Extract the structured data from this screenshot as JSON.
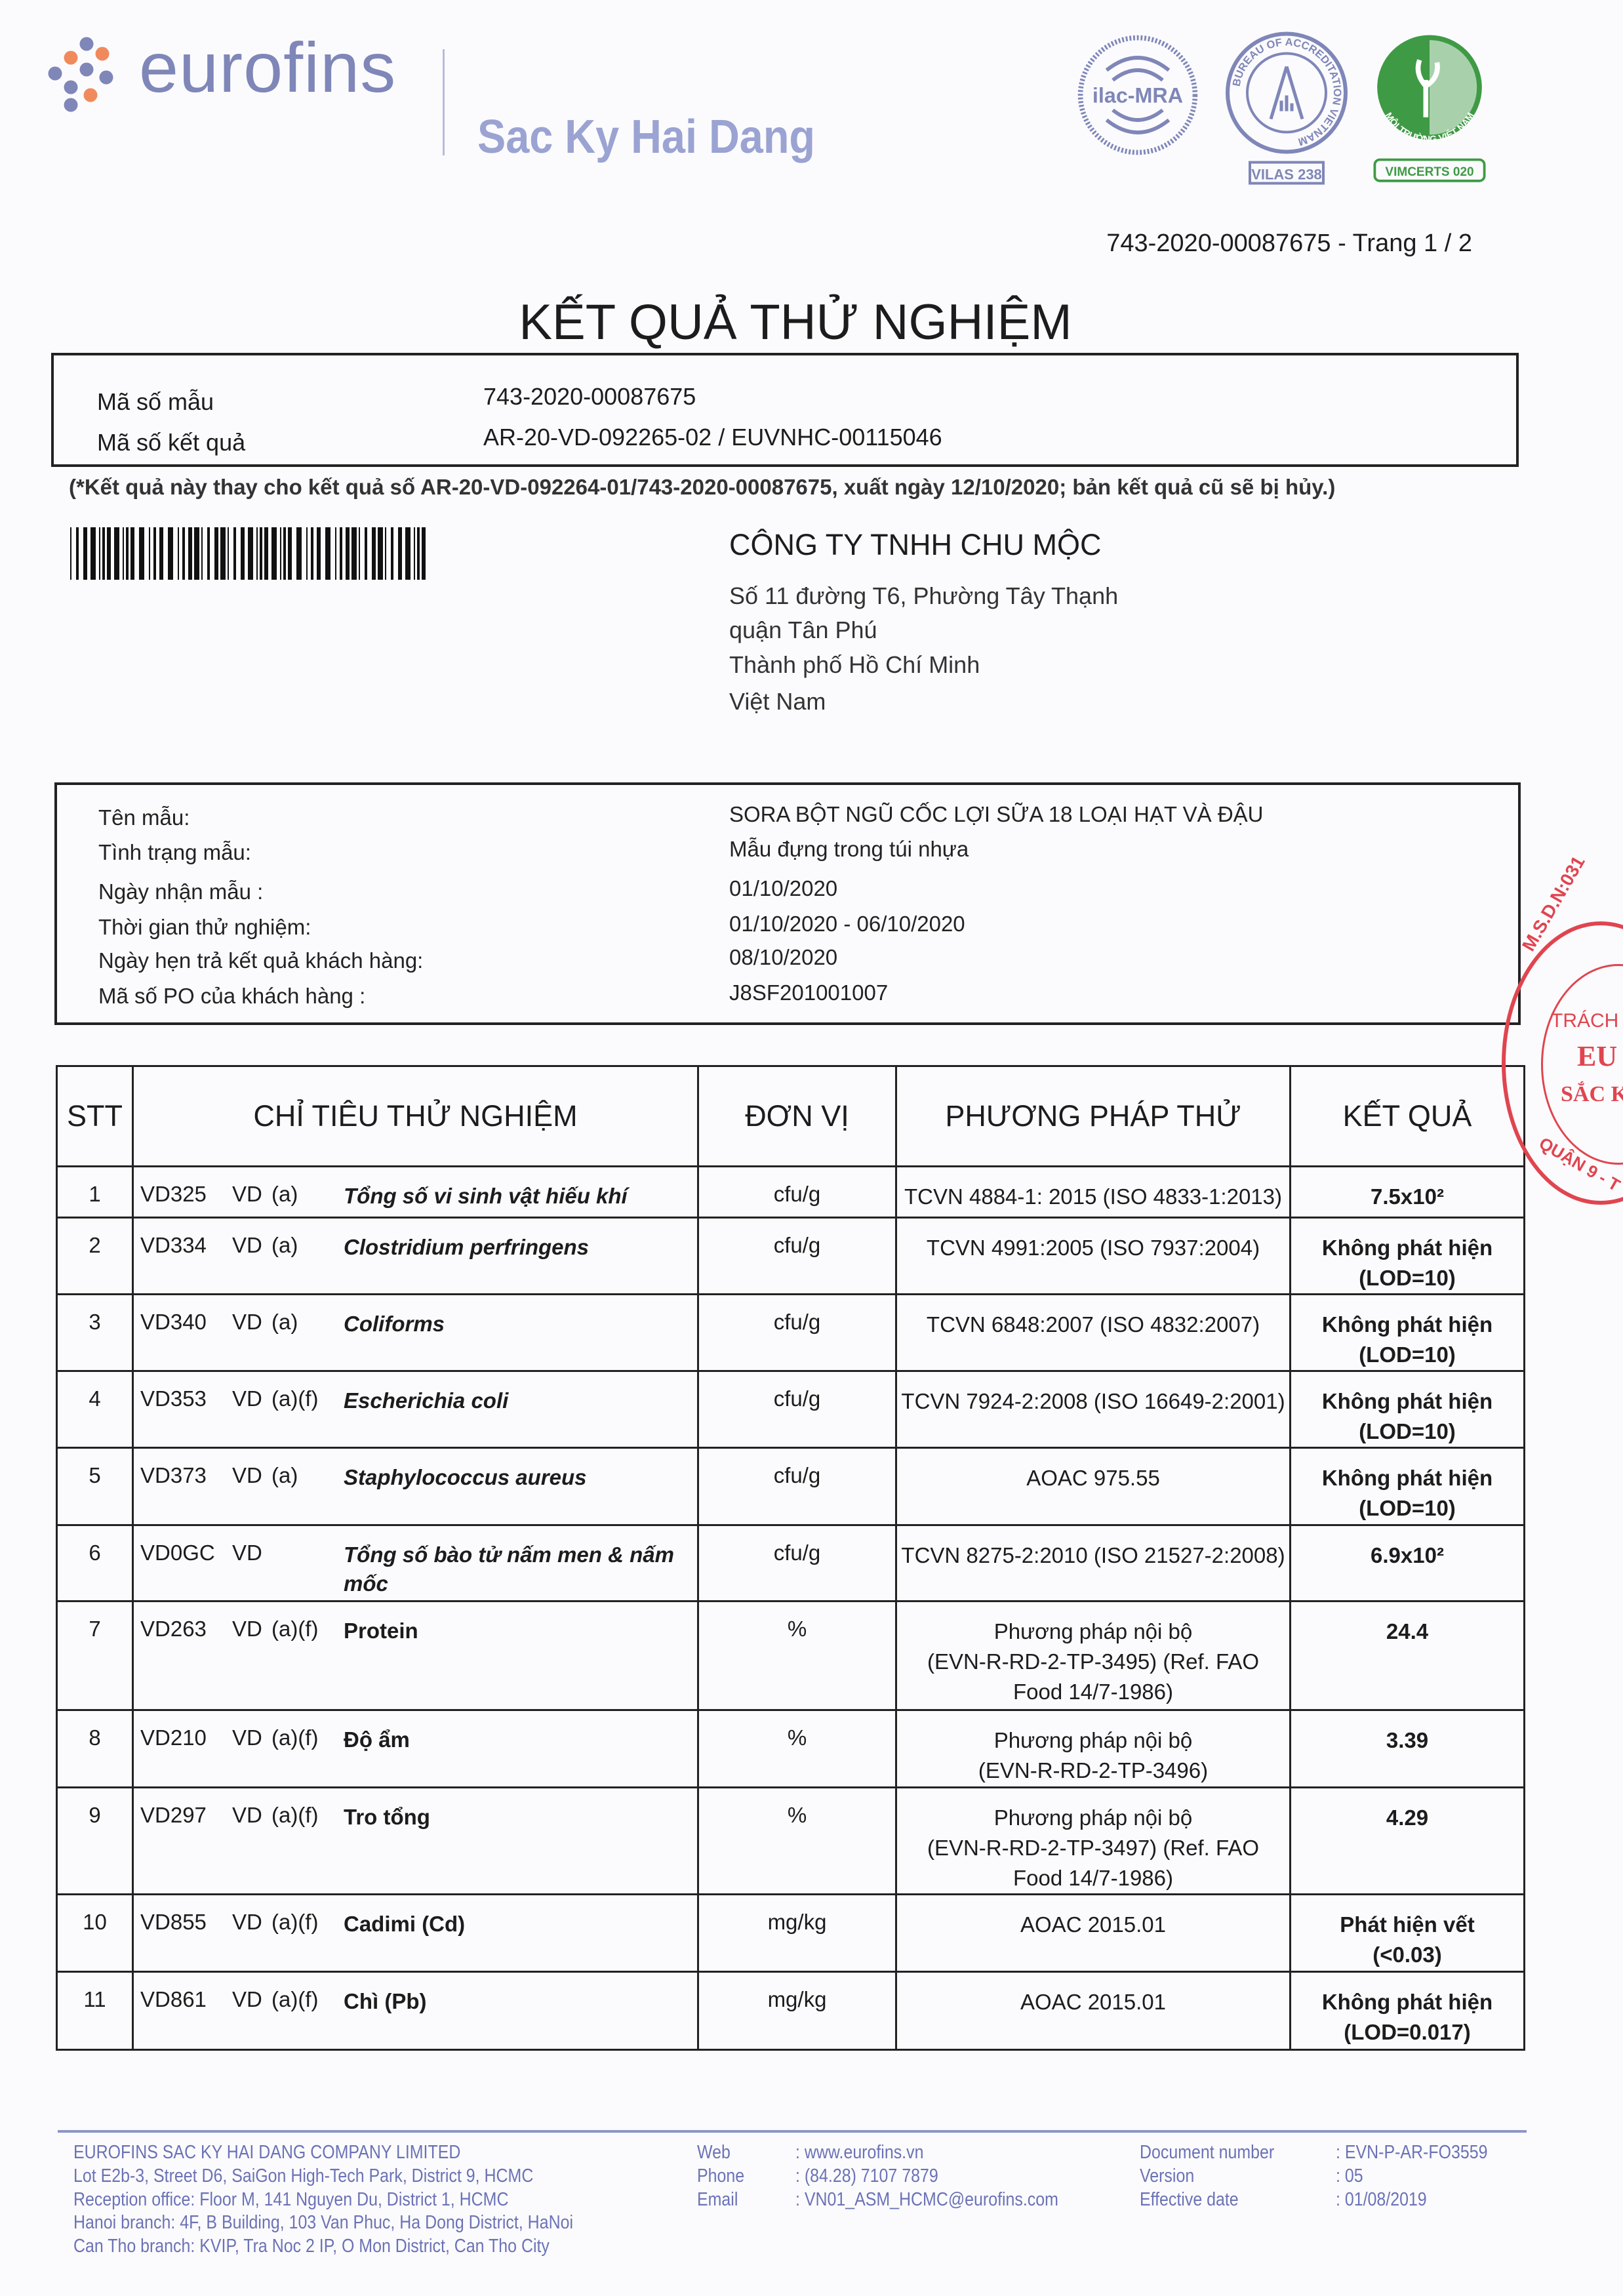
{
  "header": {
    "brand": "eurofins",
    "subbrand": "Sac Ky Hai Dang",
    "badges": [
      {
        "name": "ilac-MRA",
        "label": "ilac-MRA"
      },
      {
        "name": "bureau-of-accreditation",
        "label": "BUREAU OF ACCREDITATION VIETNAM",
        "code": "VILAS 238"
      },
      {
        "name": "moi-truong-viet-nam",
        "label": "MÔI TRƯỜNG VIỆT NAM",
        "code": "VIMCERTS 020"
      }
    ],
    "page_ref": "743-2020-00087675 - Trang 1 / 2"
  },
  "title": "KẾT QUẢ THỬ NGHIỆM",
  "ids": {
    "sample_label": "Mã số mẫu",
    "sample_value": "743-2020-00087675",
    "result_label": "Mã số kết quả",
    "result_value": "AR-20-VD-092265-02 / EUVNHC-00115046"
  },
  "note": "(*Kết quả này thay cho kết quả số AR-20-VD-092264-01/743-2020-00087675, xuất ngày 12/10/2020; bản kết quả cũ sẽ bị hủy.)",
  "customer": {
    "name": "CÔNG TY TNHH CHU MỘC",
    "address": [
      "Số 11 đường T6, Phường Tây Thạnh",
      "quận Tân Phú",
      "Thành phố Hồ Chí Minh",
      "Việt Nam"
    ]
  },
  "sample_info": [
    {
      "label": "Tên mẫu:",
      "value": "SORA BỘT NGŨ CỐC LỢI SỮA 18 LOẠI HẠT VÀ ĐẬU"
    },
    {
      "label": "Tình trạng mẫu:",
      "value": "Mẫu đựng trong túi nhựa"
    },
    {
      "label": "Ngày nhận mẫu :",
      "value": "01/10/2020"
    },
    {
      "label": "Thời gian thử nghiệm:",
      "value": "01/10/2020 - 06/10/2020"
    },
    {
      "label": "Ngày hẹn trả kết quả khách hàng:",
      "value": "08/10/2020"
    },
    {
      "label": "Mã số PO của khách hàng :",
      "value": "J8SF201001007"
    }
  ],
  "table": {
    "headers": [
      "STT",
      "CHỈ TIÊU THỬ NGHIỆM",
      "ĐƠN VỊ",
      "PHƯƠNG PHÁP THỬ",
      "KẾT QUẢ"
    ],
    "rows": [
      {
        "stt": "1",
        "code": "VD325",
        "lab": "VD",
        "flag": "(a)",
        "name": "Tổng số vi sinh vật hiếu khí",
        "italic": true,
        "unit": "cfu/g",
        "method": "TCVN 4884-1: 2015 (ISO 4833-1:2013)",
        "result": "7.5x10²"
      },
      {
        "stt": "2",
        "code": "VD334",
        "lab": "VD",
        "flag": "(a)",
        "name": "Clostridium perfringens",
        "italic": true,
        "unit": "cfu/g",
        "method": "TCVN 4991:2005 (ISO 7937:2004)",
        "result": "Không phát hiện\n(LOD=10)"
      },
      {
        "stt": "3",
        "code": "VD340",
        "lab": "VD",
        "flag": "(a)",
        "name": "Coliforms",
        "italic": true,
        "unit": "cfu/g",
        "method": "TCVN 6848:2007 (ISO 4832:2007)",
        "result": "Không phát hiện\n(LOD=10)"
      },
      {
        "stt": "4",
        "code": "VD353",
        "lab": "VD",
        "flag": "(a)(f)",
        "name": "Escherichia coli",
        "italic": true,
        "unit": "cfu/g",
        "method": "TCVN 7924-2:2008 (ISO 16649-2:2001)",
        "result": "Không phát hiện\n(LOD=10)"
      },
      {
        "stt": "5",
        "code": "VD373",
        "lab": "VD",
        "flag": "(a)",
        "name": "Staphylococcus aureus",
        "italic": true,
        "unit": "cfu/g",
        "method": "AOAC 975.55",
        "result": "Không phát hiện\n(LOD=10)"
      },
      {
        "stt": "6",
        "code": "VD0GC",
        "lab": "VD",
        "flag": "",
        "name": "Tổng số bào tử nấm men & nấm mốc",
        "italic": true,
        "unit": "cfu/g",
        "method": "TCVN 8275-2:2010 (ISO 21527-2:2008)",
        "result": "6.9x10²"
      },
      {
        "stt": "7",
        "code": "VD263",
        "lab": "VD",
        "flag": "(a)(f)",
        "name": "Protein",
        "italic": false,
        "unit": "%",
        "method": "Phương pháp nội bộ\n(EVN-R-RD-2-TP-3495) (Ref. FAO\nFood 14/7-1986)",
        "result": "24.4"
      },
      {
        "stt": "8",
        "code": "VD210",
        "lab": "VD",
        "flag": "(a)(f)",
        "name": "Độ ẩm",
        "italic": false,
        "unit": "%",
        "method": "Phương pháp nội bộ\n(EVN-R-RD-2-TP-3496)",
        "result": "3.39"
      },
      {
        "stt": "9",
        "code": "VD297",
        "lab": "VD",
        "flag": "(a)(f)",
        "name": "Tro tổng",
        "italic": false,
        "unit": "%",
        "method": "Phương pháp nội bộ\n(EVN-R-RD-2-TP-3497) (Ref. FAO\nFood 14/7-1986)",
        "result": "4.29"
      },
      {
        "stt": "10",
        "code": "VD855",
        "lab": "VD",
        "flag": "(a)(f)",
        "name": "Cadimi (Cd)",
        "italic": false,
        "unit": "mg/kg",
        "method": "AOAC 2015.01",
        "result": "Phát hiện vết\n(<0.03)"
      },
      {
        "stt": "11",
        "code": "VD861",
        "lab": "VD",
        "flag": "(a)(f)",
        "name": "Chì (Pb)",
        "italic": false,
        "unit": "mg/kg",
        "method": "AOAC 2015.01",
        "result": "Không phát hiện\n(LOD=0.017)"
      }
    ]
  },
  "stamp": {
    "lines": [
      "M.S.D.N:031",
      "TRÁCH",
      "EU",
      "SẮC K",
      "QUẬN 9 - T"
    ]
  },
  "footer": {
    "company": [
      "EUROFINS SAC KY HAI DANG COMPANY LIMITED",
      "Lot E2b-3, Street D6, SaiGon High-Tech Park, District 9, HCMC",
      "Reception office: Floor M, 141 Nguyen Du, District 1, HCMC",
      "Hanoi branch: 4F, B Building, 103 Van Phuc, Ha Dong District, HaNoi",
      "Can Tho branch: KVIP, Tra Noc 2 IP, O Mon District, Can Tho City"
    ],
    "contact": [
      {
        "label": "Web",
        "value": ": www.eurofins.vn"
      },
      {
        "label": "Phone",
        "value": ": (84.28) 7107 7879"
      },
      {
        "label": "Email",
        "value": ": VN01_ASM_HCMC@eurofins.com"
      }
    ],
    "doc": [
      {
        "label": "Document number",
        "value": ": EVN-P-AR-FO3559"
      },
      {
        "label": "Version",
        "value": ": 05"
      },
      {
        "label": "Effective date",
        "value": ": 01/08/2019"
      }
    ]
  },
  "colors": {
    "brand": "#7f86b8",
    "footer": "#6b72b6",
    "stamp": "#e0454f",
    "green": "#3f9a45"
  }
}
